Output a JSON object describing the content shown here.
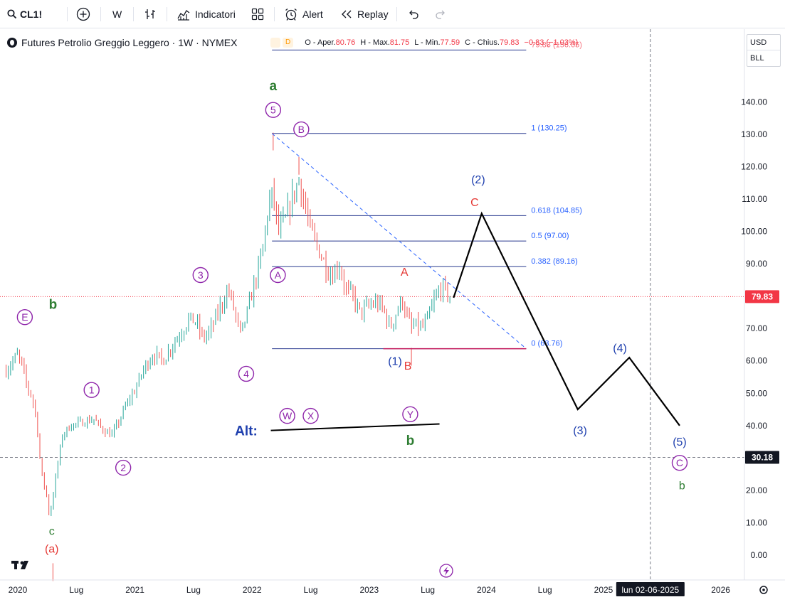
{
  "toolbar": {
    "symbol": "CL1!",
    "interval": "W",
    "indicators_label": "Indicatori",
    "alert_label": "Alert",
    "replay_label": "Replay"
  },
  "legend": {
    "title": "Futures Petrolio Greggio Leggero · 1W · NYMEX",
    "d_badge": "D",
    "open_label": "O - Aper.",
    "open": "80.76",
    "high_label": "H - Max.",
    "high": "81.75",
    "low_label": "L - Min.",
    "low": "77.59",
    "close_label": "C - Chius.",
    "close": "79.83",
    "change": "−0.83 (−1.03%)"
  },
  "price_axis": {
    "currency": "USD",
    "unit": "BLL",
    "current_price": "79.83",
    "crosshair_price": "30.18"
  },
  "time_axis": {
    "crosshair_date": "lun 02-06-2025"
  },
  "colors": {
    "up": "#26a69a",
    "down": "#ef5350",
    "fib": "#2a3a8f",
    "projection": "#000000",
    "wave_purple": "#8e24aa",
    "wave_green": "#2e7d32",
    "wave_red": "#e53935",
    "wave_blue": "#1e3fae",
    "price_label_bg": "#f23645"
  },
  "chart_data": {
    "type": "candlestick",
    "title": "Futures Petrolio Greggio Leggero · 1W · NYMEX",
    "ylim": [
      -5,
      160
    ],
    "yticks": [
      0,
      10,
      20,
      30,
      40,
      50,
      60,
      70,
      80,
      90,
      100,
      110,
      120,
      130,
      140
    ],
    "ytick_labels": [
      "0.00",
      "10.00",
      "20.00",
      "30.00",
      "40.00",
      "50.00",
      "60.00",
      "70.00",
      "80.00",
      "90.00",
      "100.00",
      "110.00",
      "120.00",
      "130.00",
      "140.00"
    ],
    "xtick_labels": [
      {
        "t": 2020.0,
        "label": "2020"
      },
      {
        "t": 2020.5,
        "label": "Lug"
      },
      {
        "t": 2021.0,
        "label": "2021"
      },
      {
        "t": 2021.5,
        "label": "Lug"
      },
      {
        "t": 2022.0,
        "label": "2022"
      },
      {
        "t": 2022.5,
        "label": "Lug"
      },
      {
        "t": 2023.0,
        "label": "2023"
      },
      {
        "t": 2023.5,
        "label": "Lug"
      },
      {
        "t": 2024.0,
        "label": "2024"
      },
      {
        "t": 2024.5,
        "label": "Lug"
      },
      {
        "t": 2025.0,
        "label": "2025"
      },
      {
        "t": 2026.0,
        "label": "2026"
      }
    ],
    "price_path": [
      [
        2019.9,
        57
      ],
      [
        2019.96,
        60
      ],
      [
        2020.0,
        62
      ],
      [
        2020.04,
        58
      ],
      [
        2020.08,
        52
      ],
      [
        2020.12,
        49
      ],
      [
        2020.16,
        42
      ],
      [
        2020.2,
        25
      ],
      [
        2020.24,
        20
      ],
      [
        2020.27,
        12
      ],
      [
        2020.3,
        18
      ],
      [
        2020.34,
        28
      ],
      [
        2020.38,
        37
      ],
      [
        2020.45,
        40
      ],
      [
        2020.55,
        41
      ],
      [
        2020.65,
        42
      ],
      [
        2020.72,
        39
      ],
      [
        2020.8,
        37
      ],
      [
        2020.86,
        41
      ],
      [
        2020.92,
        46
      ],
      [
        2021.0,
        51
      ],
      [
        2021.08,
        58
      ],
      [
        2021.16,
        62
      ],
      [
        2021.24,
        60
      ],
      [
        2021.32,
        65
      ],
      [
        2021.4,
        69
      ],
      [
        2021.46,
        73
      ],
      [
        2021.52,
        72
      ],
      [
        2021.58,
        67
      ],
      [
        2021.64,
        69
      ],
      [
        2021.72,
        76
      ],
      [
        2021.8,
        82
      ],
      [
        2021.86,
        74
      ],
      [
        2021.9,
        68
      ],
      [
        2021.96,
        75
      ],
      [
        2022.02,
        84
      ],
      [
        2022.08,
        92
      ],
      [
        2022.14,
        108
      ],
      [
        2022.18,
        112
      ],
      [
        2022.22,
        100
      ],
      [
        2022.28,
        103
      ],
      [
        2022.34,
        110
      ],
      [
        2022.4,
        116
      ],
      [
        2022.45,
        108
      ],
      [
        2022.5,
        100
      ],
      [
        2022.56,
        95
      ],
      [
        2022.62,
        90
      ],
      [
        2022.68,
        86
      ],
      [
        2022.74,
        90
      ],
      [
        2022.8,
        82
      ],
      [
        2022.86,
        80
      ],
      [
        2022.92,
        75
      ],
      [
        2023.0,
        77
      ],
      [
        2023.06,
        78
      ],
      [
        2023.12,
        76
      ],
      [
        2023.18,
        70
      ],
      [
        2023.22,
        74
      ],
      [
        2023.28,
        79
      ],
      [
        2023.32,
        74
      ],
      [
        2023.36,
        70
      ],
      [
        2023.4,
        71
      ],
      [
        2023.45,
        70
      ],
      [
        2023.5,
        73
      ],
      [
        2023.56,
        79
      ],
      [
        2023.62,
        83
      ],
      [
        2023.66,
        81
      ],
      [
        2023.7,
        79.83
      ]
    ],
    "high_low_marks": [
      [
        2022.18,
        130.5
      ],
      [
        2022.4,
        123
      ],
      [
        2020.3,
        -8
      ],
      [
        2023.36,
        64
      ]
    ],
    "fibonacci": {
      "t_start": 2022.17,
      "t_end": 2024.34,
      "levels": [
        {
          "ratio": "1",
          "price": 130.25,
          "label": "1 (130.25)"
        },
        {
          "ratio": "0.618",
          "price": 104.85,
          "label": "0.618 (104.85)"
        },
        {
          "ratio": "0.5",
          "price": 97.0,
          "label": "0.5 (97.00)"
        },
        {
          "ratio": "0.382",
          "price": 89.16,
          "label": "0.382 (89.16)"
        },
        {
          "ratio": "0",
          "price": 63.76,
          "label": "0 (63.76)"
        }
      ],
      "extra_level_price": 156,
      "extra_label": "79.83 (156.65)"
    },
    "trendline": {
      "from": [
        2022.17,
        130.25
      ],
      "to": [
        2024.34,
        63.76
      ]
    },
    "support_line": {
      "from": [
        2023.12,
        63.76
      ],
      "to": [
        2024.34,
        63.76
      ]
    },
    "projection": [
      [
        2023.72,
        79.5
      ],
      [
        2023.96,
        105.5
      ],
      [
        2024.78,
        45
      ],
      [
        2025.22,
        61
      ],
      [
        2025.65,
        40
      ]
    ],
    "alt_line": {
      "from": [
        2022.16,
        38.5
      ],
      "to": [
        2023.6,
        40.5
      ]
    },
    "current_price_line": 79.83,
    "crosshair": {
      "t": 2025.4,
      "price": 30.18
    }
  },
  "wave_labels": [
    {
      "text": "E",
      "t": 2020.06,
      "price": 73.5,
      "style": "circle",
      "color": "purple"
    },
    {
      "text": "b",
      "t": 2020.3,
      "price": 77.5,
      "style": "plain",
      "color": "green",
      "size": "big"
    },
    {
      "text": "1",
      "t": 2020.63,
      "price": 51,
      "style": "circle",
      "color": "purple"
    },
    {
      "text": "2",
      "t": 2020.9,
      "price": 27,
      "style": "circle",
      "color": "purple"
    },
    {
      "text": "3",
      "t": 2021.56,
      "price": 86.5,
      "style": "circle",
      "color": "purple"
    },
    {
      "text": "4",
      "t": 2021.95,
      "price": 56,
      "style": "circle",
      "color": "purple"
    },
    {
      "text": "a",
      "t": 2022.18,
      "price": 145,
      "style": "plain",
      "color": "green",
      "size": "big"
    },
    {
      "text": "5",
      "t": 2022.18,
      "price": 137.5,
      "style": "circle",
      "color": "purple"
    },
    {
      "text": "B",
      "t": 2022.42,
      "price": 131.5,
      "style": "circle",
      "color": "purple"
    },
    {
      "text": "A",
      "t": 2022.22,
      "price": 86.5,
      "style": "circle",
      "color": "purple"
    },
    {
      "text": "A",
      "t": 2023.3,
      "price": 87.5,
      "style": "plain",
      "color": "red"
    },
    {
      "text": "(1)",
      "t": 2023.22,
      "price": 60,
      "style": "plain",
      "color": "blue"
    },
    {
      "text": "B",
      "t": 2023.33,
      "price": 58.5,
      "style": "plain",
      "color": "red"
    },
    {
      "text": "(2)",
      "t": 2023.93,
      "price": 116,
      "style": "plain",
      "color": "blue"
    },
    {
      "text": "C",
      "t": 2023.9,
      "price": 109,
      "style": "plain",
      "color": "red"
    },
    {
      "text": "W",
      "t": 2022.3,
      "price": 43,
      "style": "circle",
      "color": "purple"
    },
    {
      "text": "X",
      "t": 2022.5,
      "price": 43,
      "style": "circle",
      "color": "purple"
    },
    {
      "text": "Y",
      "t": 2023.35,
      "price": 43.5,
      "style": "circle",
      "color": "purple"
    },
    {
      "text": "Alt:",
      "t": 2021.95,
      "price": 38.5,
      "style": "plain",
      "color": "blue",
      "size": "big"
    },
    {
      "text": "b",
      "t": 2023.35,
      "price": 35.5,
      "style": "plain",
      "color": "green",
      "size": "big"
    },
    {
      "text": "(3)",
      "t": 2024.8,
      "price": 38.5,
      "style": "plain",
      "color": "blue"
    },
    {
      "text": "(4)",
      "t": 2025.14,
      "price": 64,
      "style": "plain",
      "color": "blue"
    },
    {
      "text": "(5)",
      "t": 2025.65,
      "price": 35,
      "style": "plain",
      "color": "blue"
    },
    {
      "text": "C",
      "t": 2025.65,
      "price": 28.5,
      "style": "circle",
      "color": "purple"
    },
    {
      "text": "b",
      "t": 2025.67,
      "price": 21.5,
      "style": "plain",
      "color": "green"
    },
    {
      "text": "c",
      "t": 2020.29,
      "price": 7.5,
      "style": "plain",
      "color": "green"
    },
    {
      "text": "(a)",
      "t": 2020.29,
      "price": 2,
      "style": "plain",
      "color": "red"
    }
  ]
}
